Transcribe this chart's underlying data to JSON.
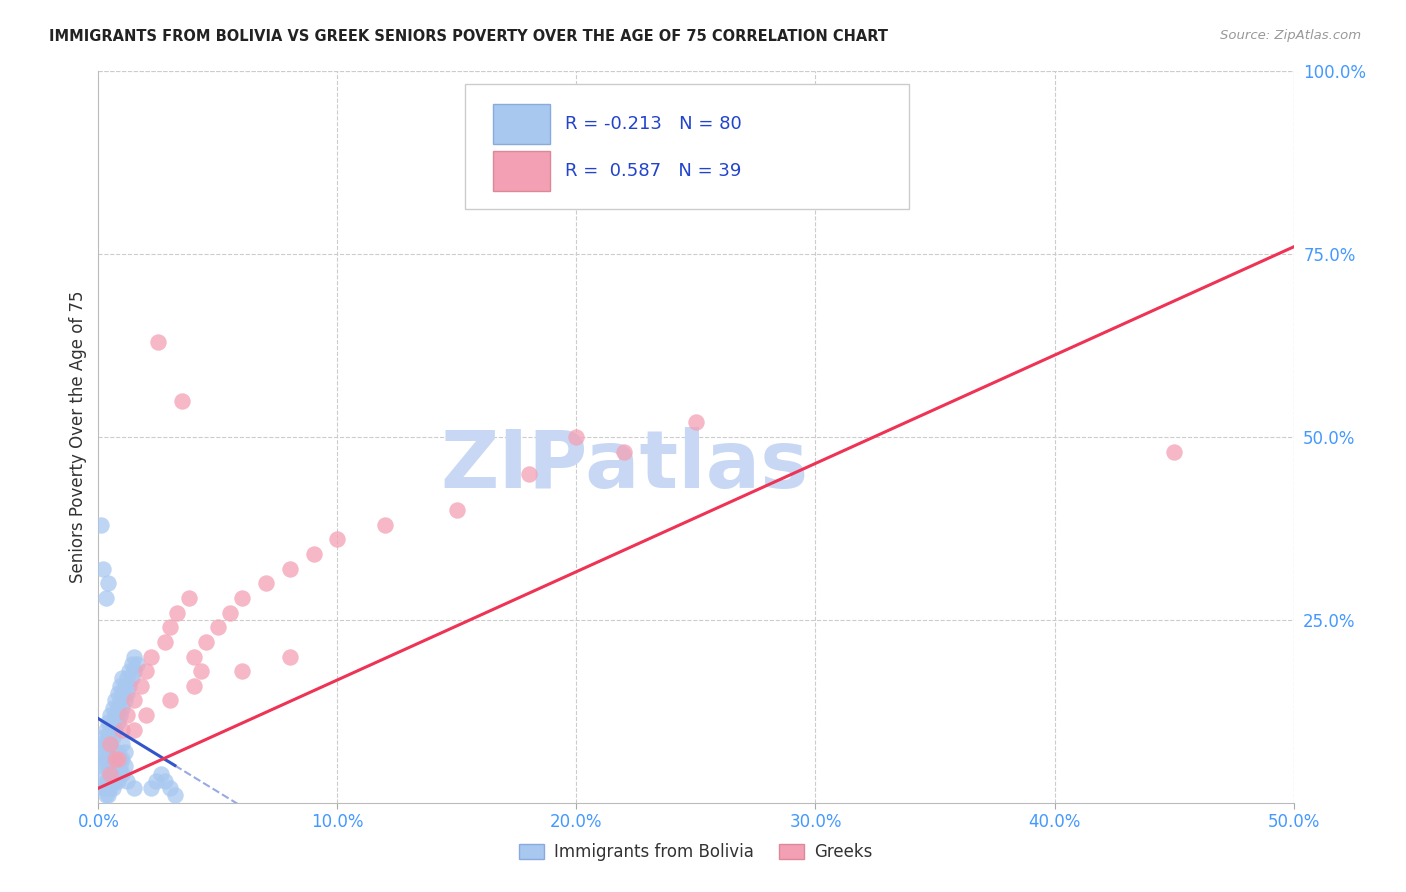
{
  "title": "IMMIGRANTS FROM BOLIVIA VS GREEK SENIORS POVERTY OVER THE AGE OF 75 CORRELATION CHART",
  "source": "Source: ZipAtlas.com",
  "ylabel": "Seniors Poverty Over the Age of 75",
  "xlim": [
    0.0,
    0.5
  ],
  "ylim": [
    0.0,
    1.0
  ],
  "bolivia_color": "#a8c8f0",
  "bolivia_edge_color": "#88aadd",
  "greek_color": "#f4a0b4",
  "greek_edge_color": "#dd8899",
  "bolivia_line_color": "#3355cc",
  "greek_line_color": "#ee3355",
  "watermark": "ZIPatlas",
  "watermark_color": "#c8d8f4",
  "bolivia_R": -0.213,
  "bolivia_N": 80,
  "greek_R": 0.587,
  "greek_N": 39,
  "bolivia_x": [
    0.0005,
    0.001,
    0.0015,
    0.002,
    0.002,
    0.003,
    0.003,
    0.003,
    0.004,
    0.004,
    0.004,
    0.005,
    0.005,
    0.005,
    0.006,
    0.006,
    0.006,
    0.007,
    0.007,
    0.007,
    0.008,
    0.008,
    0.008,
    0.009,
    0.009,
    0.009,
    0.01,
    0.01,
    0.01,
    0.011,
    0.011,
    0.012,
    0.012,
    0.013,
    0.013,
    0.014,
    0.014,
    0.015,
    0.015,
    0.016,
    0.002,
    0.003,
    0.004,
    0.005,
    0.006,
    0.007,
    0.008,
    0.009,
    0.01,
    0.011,
    0.002,
    0.003,
    0.004,
    0.005,
    0.006,
    0.007,
    0.008,
    0.009,
    0.01,
    0.011,
    0.003,
    0.004,
    0.005,
    0.006,
    0.007,
    0.008,
    0.009,
    0.01,
    0.012,
    0.015,
    0.001,
    0.002,
    0.003,
    0.004,
    0.022,
    0.024,
    0.026,
    0.028,
    0.03,
    0.032
  ],
  "bolivia_y": [
    0.08,
    0.06,
    0.05,
    0.07,
    0.09,
    0.06,
    0.08,
    0.1,
    0.07,
    0.09,
    0.11,
    0.08,
    0.1,
    0.12,
    0.09,
    0.11,
    0.13,
    0.1,
    0.12,
    0.14,
    0.11,
    0.13,
    0.15,
    0.12,
    0.14,
    0.16,
    0.13,
    0.15,
    0.17,
    0.14,
    0.16,
    0.15,
    0.17,
    0.16,
    0.18,
    0.17,
    0.19,
    0.18,
    0.2,
    0.19,
    0.04,
    0.03,
    0.05,
    0.04,
    0.06,
    0.05,
    0.07,
    0.06,
    0.08,
    0.07,
    0.02,
    0.01,
    0.03,
    0.02,
    0.04,
    0.03,
    0.05,
    0.04,
    0.06,
    0.05,
    0.02,
    0.01,
    0.03,
    0.02,
    0.04,
    0.03,
    0.05,
    0.04,
    0.03,
    0.02,
    0.38,
    0.32,
    0.28,
    0.3,
    0.02,
    0.03,
    0.04,
    0.03,
    0.02,
    0.01
  ],
  "greek_x": [
    0.005,
    0.007,
    0.01,
    0.012,
    0.015,
    0.018,
    0.02,
    0.022,
    0.025,
    0.028,
    0.03,
    0.033,
    0.035,
    0.038,
    0.04,
    0.043,
    0.045,
    0.05,
    0.055,
    0.06,
    0.07,
    0.08,
    0.09,
    0.1,
    0.12,
    0.15,
    0.18,
    0.2,
    0.22,
    0.25,
    0.005,
    0.008,
    0.015,
    0.02,
    0.03,
    0.04,
    0.06,
    0.08,
    0.45
  ],
  "greek_y": [
    0.08,
    0.06,
    0.1,
    0.12,
    0.14,
    0.16,
    0.18,
    0.2,
    0.63,
    0.22,
    0.24,
    0.26,
    0.55,
    0.28,
    0.2,
    0.18,
    0.22,
    0.24,
    0.26,
    0.28,
    0.3,
    0.32,
    0.34,
    0.36,
    0.38,
    0.4,
    0.45,
    0.5,
    0.48,
    0.52,
    0.04,
    0.06,
    0.1,
    0.12,
    0.14,
    0.16,
    0.18,
    0.2,
    0.48
  ],
  "grid_color": "#cccccc",
  "spine_color": "#bbbbbb"
}
